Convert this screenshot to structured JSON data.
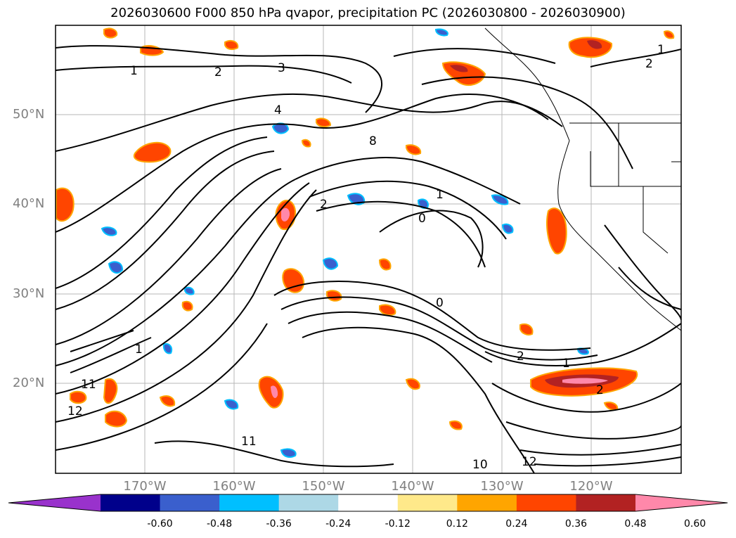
{
  "title": "2026030600 F000 850 hPa qvapor, precipitation PC (2026030800 - 2026030900)",
  "latitude_labels": [
    "50°N",
    "40°N",
    "30°N",
    "20°N"
  ],
  "longitude_labels": [
    "170°W",
    "160°W",
    "150°W",
    "140°W",
    "130°W",
    "120°W"
  ],
  "colorbar": {
    "extend": "both",
    "ticks": [
      "-0.60",
      "-0.48",
      "-0.36",
      "-0.24",
      "-0.12",
      "0.12",
      "0.24",
      "0.36",
      "0.48",
      "0.60"
    ],
    "colors": [
      "#9932cc",
      "#00008b",
      "#3a5fcd",
      "#00bfff",
      "#add8e6",
      "#ffffff",
      "#ffe98a",
      "#ffa500",
      "#ff4500",
      "#b22222",
      "#ff88aa"
    ]
  },
  "contour_labels": [
    "1",
    "2",
    "3",
    "4",
    "8",
    "1",
    "2",
    "0",
    "0",
    "1",
    "2",
    "2",
    "1",
    "11",
    "12",
    "11",
    "10",
    "12",
    "1",
    "2"
  ],
  "colors": {
    "grid": "#999999",
    "contour": "#000000",
    "border": "#000000"
  }
}
